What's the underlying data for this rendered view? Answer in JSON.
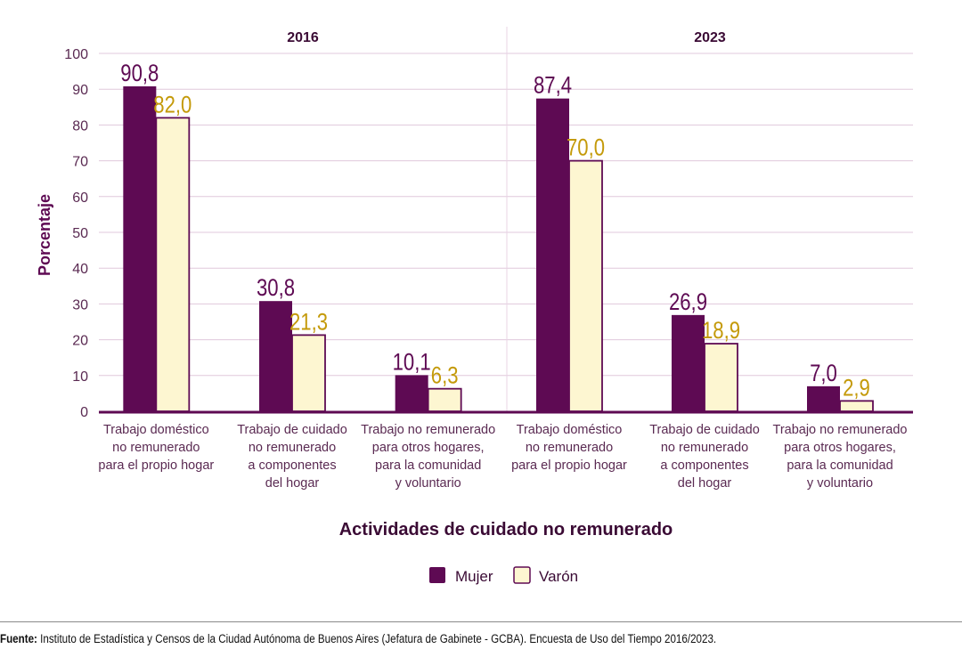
{
  "colors": {
    "mujer_fill": "#5e0a53",
    "varon_fill": "#fdf6d1",
    "varon_label": "#c49a0a",
    "axis": "#5e0a53",
    "grid": "#e0c8dc",
    "panel_divider": "#e8d4e4"
  },
  "chart_data": {
    "type": "bar",
    "ylabel": "Porcentaje",
    "xlabel": "Actividades de cuidado no remunerado",
    "ylim": [
      0,
      100
    ],
    "yticks": [
      "0",
      "10",
      "20",
      "30",
      "40",
      "50",
      "60",
      "70",
      "80",
      "90",
      "100"
    ],
    "grid": true,
    "legend_position": "bottom-center",
    "panels": [
      {
        "title": "2016",
        "categories": [
          [
            "Trabajo doméstico",
            "no remunerado",
            "para el propio hogar"
          ],
          [
            "Trabajo de cuidado",
            "no remunerado",
            "a componentes",
            "del hogar"
          ],
          [
            "Trabajo no remunerado",
            "para otros hogares,",
            "para la comunidad",
            "y voluntario"
          ]
        ],
        "series": [
          {
            "name": "Mujer",
            "values": [
              90.8,
              30.8,
              10.1
            ],
            "labels": [
              "90,8",
              "30,8",
              "10,1"
            ]
          },
          {
            "name": "Varón",
            "values": [
              82.0,
              21.3,
              6.3
            ],
            "labels": [
              "82,0",
              "21,3",
              "6,3"
            ]
          }
        ]
      },
      {
        "title": "2023",
        "categories": [
          [
            "Trabajo doméstico",
            "no remunerado",
            "para el propio hogar"
          ],
          [
            "Trabajo de cuidado",
            "no remunerado",
            "a componentes",
            "del hogar"
          ],
          [
            "Trabajo no remunerado",
            "para otros hogares,",
            "para la comunidad",
            "y voluntario"
          ]
        ],
        "series": [
          {
            "name": "Mujer",
            "values": [
              87.4,
              26.9,
              7.0
            ],
            "labels": [
              "87,4",
              "26,9",
              "7,0"
            ]
          },
          {
            "name": "Varón",
            "values": [
              70.0,
              18.9,
              2.9
            ],
            "labels": [
              "70,0",
              "18,9",
              "2,9"
            ]
          }
        ]
      }
    ]
  },
  "legend": {
    "mujer": "Mujer",
    "varon": "Varón"
  },
  "source": {
    "label": "Fuente:",
    "text": " Instituto de Estadística y Censos de la Ciudad Autónoma de Buenos Aires (Jefatura de Gabinete - GCBA). Encuesta de Uso del Tiempo 2016/2023."
  }
}
